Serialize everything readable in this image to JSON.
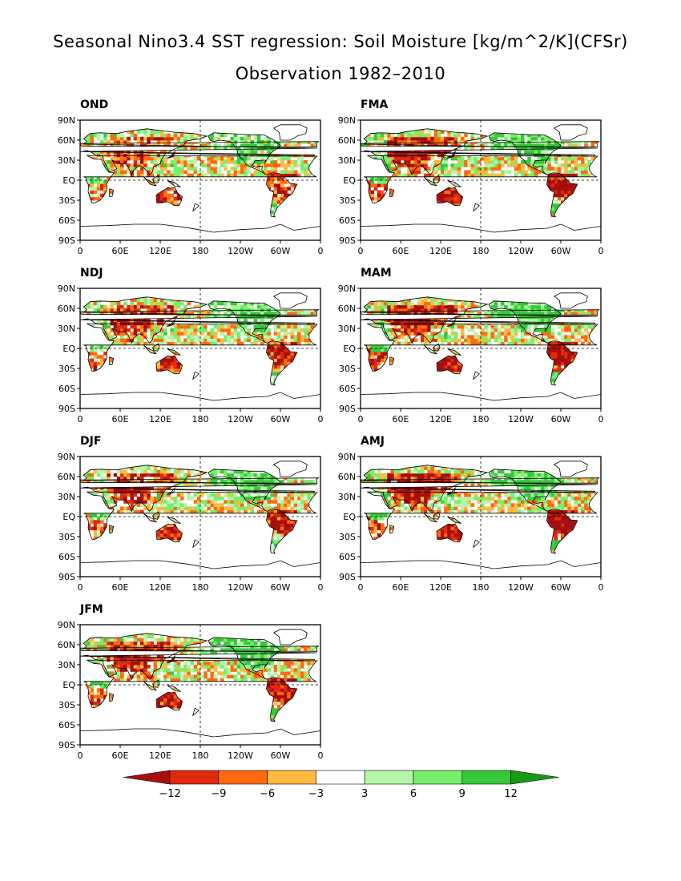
{
  "title": "Seasonal Nino3.4 SST regression: Soil Moisture [kg/m^2/K](CFSr)",
  "subtitle": "Observation 1982–2010",
  "axis": {
    "lat_labels": [
      "90N",
      "60N",
      "30N",
      "EQ",
      "30S",
      "60S",
      "90S"
    ],
    "lon_labels": [
      "0",
      "60E",
      "120E",
      "180",
      "120W",
      "60W",
      "0"
    ]
  },
  "panels": [
    {
      "label": "OND",
      "anomaly_tendency": "mixed"
    },
    {
      "label": "FMA",
      "anomaly_tendency": "strong-dry"
    },
    {
      "label": "NDJ",
      "anomaly_tendency": "moderate-dry"
    },
    {
      "label": "MAM",
      "anomaly_tendency": "strong-dry"
    },
    {
      "label": "DJF",
      "anomaly_tendency": "moderate-dry"
    },
    {
      "label": "AMJ",
      "anomaly_tendency": "strong-dry"
    },
    {
      "label": "JFM",
      "anomaly_tendency": "moderate-dry"
    }
  ],
  "colorbar": {
    "ticks": [
      "−12",
      "−9",
      "−6",
      "−3",
      "3",
      "6",
      "9",
      "12"
    ],
    "colors": [
      "#a50f0f",
      "#e02a0e",
      "#ff6a0f",
      "#ffb840",
      "#ffffff",
      "#b4f7a8",
      "#78ee6c",
      "#38c83c",
      "#179b17"
    ]
  }
}
